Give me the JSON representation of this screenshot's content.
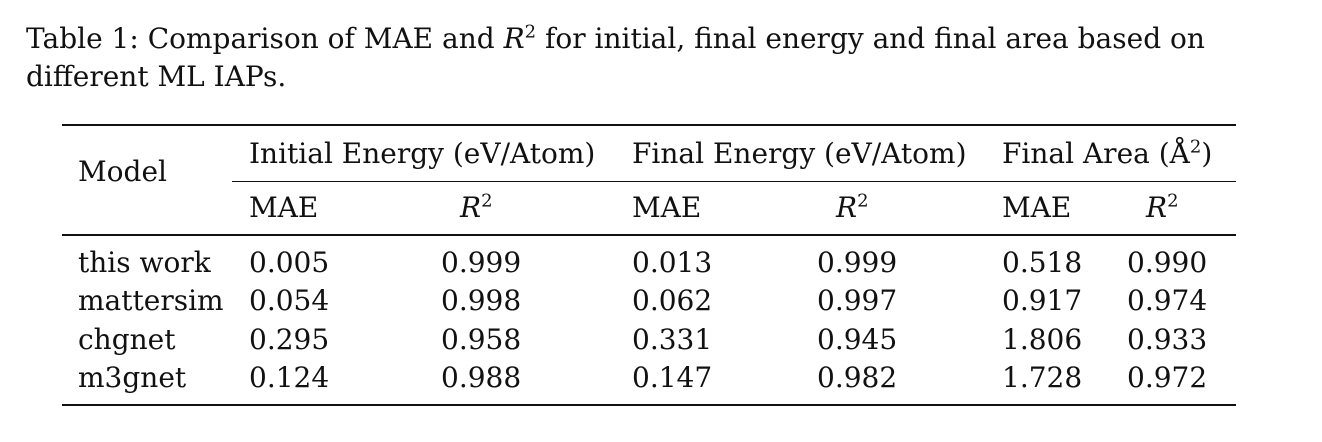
{
  "caption": {
    "label": "Table 1:",
    "text_before": "Comparison of MAE and",
    "r_symbol": "R",
    "r_exp": "2",
    "text_after": "for initial, final energy and final area based on different ML IAPs."
  },
  "table": {
    "model_header": "Model",
    "groups": [
      {
        "label": "Initial Energy (eV/Atom)"
      },
      {
        "label": "Final Energy (eV/Atom)"
      },
      {
        "label": "Final Area (Å",
        "exp": "2",
        "close": ")"
      }
    ],
    "sub": {
      "mae": "MAE",
      "r": "R",
      "r_exp": "2"
    },
    "rows": [
      {
        "model": "this work",
        "v": [
          "0.005",
          "0.999",
          "0.013",
          "0.999",
          "0.518",
          "0.990"
        ]
      },
      {
        "model": "mattersim",
        "v": [
          "0.054",
          "0.998",
          "0.062",
          "0.997",
          "0.917",
          "0.974"
        ]
      },
      {
        "model": "chgnet",
        "v": [
          "0.295",
          "0.958",
          "0.331",
          "0.945",
          "1.806",
          "0.933"
        ]
      },
      {
        "model": "m3gnet",
        "v": [
          "0.124",
          "0.988",
          "0.147",
          "0.982",
          "1.728",
          "0.972"
        ]
      }
    ]
  }
}
